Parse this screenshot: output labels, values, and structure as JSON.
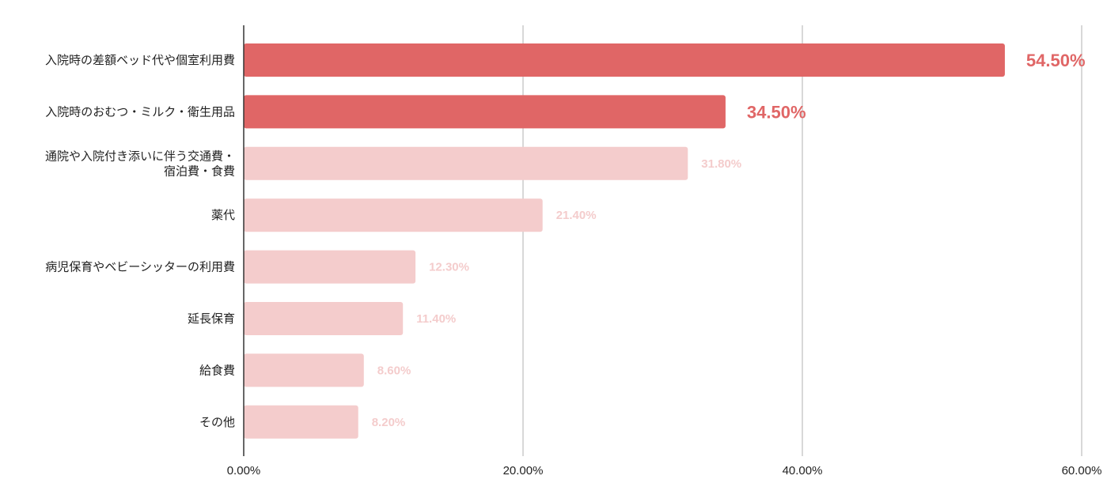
{
  "chart_data": {
    "type": "bar",
    "orientation": "horizontal",
    "title": "",
    "xlabel": "",
    "ylabel": "",
    "xlim": [
      0,
      60
    ],
    "grid": true,
    "legend": "none",
    "x_ticks": [
      "0.00%",
      "20.00%",
      "40.00%",
      "60.00%"
    ],
    "tick_values": [
      0,
      20,
      40,
      60
    ],
    "colors": {
      "highlight": "#e06666",
      "normal": "#f4cccc",
      "grid": "#cccccc",
      "axis": "#333333"
    },
    "categories": [
      "入院時の差額ベッド代や個室利用費",
      "入院時のおむつ・ミルク・衛生用品",
      "通院や入院付き添いに伴う交通費・\n宿泊費・食費",
      "薬代",
      "病児保育やベビーシッターの利用費",
      "延長保育",
      "給食費",
      "その他"
    ],
    "values": [
      54.5,
      34.5,
      31.8,
      21.4,
      12.3,
      11.4,
      8.6,
      8.2
    ],
    "value_labels": [
      "54.50%",
      "34.50%",
      "31.80%",
      "21.40%",
      "12.30%",
      "11.40%",
      "8.60%",
      "8.20%"
    ],
    "highlighted": [
      true,
      true,
      false,
      false,
      false,
      false,
      false,
      false
    ]
  }
}
